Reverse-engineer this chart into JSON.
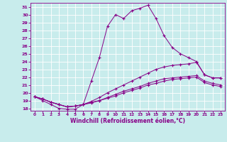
{
  "xlabel": "Windchill (Refroidissement éolien,°C)",
  "xlim": [
    -0.5,
    23.5
  ],
  "ylim": [
    17.7,
    31.5
  ],
  "xticks": [
    0,
    1,
    2,
    3,
    4,
    5,
    6,
    7,
    8,
    9,
    10,
    11,
    12,
    13,
    14,
    15,
    16,
    17,
    18,
    19,
    20,
    21,
    22,
    23
  ],
  "yticks": [
    18,
    19,
    20,
    21,
    22,
    23,
    24,
    25,
    26,
    27,
    28,
    29,
    30,
    31
  ],
  "background_color": "#c8ecec",
  "grid_color": "#ffffff",
  "line_color": "#880088",
  "marker": "+",
  "curve1_x": [
    0,
    1,
    2,
    3,
    4,
    5,
    6,
    7,
    8,
    9,
    10,
    11,
    12,
    13,
    14,
    15,
    16,
    17,
    18,
    19,
    20,
    21,
    22,
    23
  ],
  "curve1_y": [
    19.5,
    19.0,
    18.5,
    18.0,
    17.9,
    17.9,
    18.5,
    21.5,
    24.5,
    28.5,
    30.0,
    29.5,
    30.5,
    30.8,
    31.2,
    29.5,
    27.3,
    25.8,
    25.0,
    24.5,
    24.0,
    22.3,
    21.9,
    21.9
  ],
  "curve2_x": [
    0,
    1,
    2,
    3,
    4,
    5,
    6,
    7,
    8,
    9,
    10,
    11,
    12,
    13,
    14,
    15,
    16,
    17,
    18,
    19,
    20,
    21,
    22,
    23
  ],
  "curve2_y": [
    19.5,
    19.2,
    18.8,
    18.5,
    18.2,
    18.3,
    18.5,
    18.9,
    19.4,
    20.0,
    20.5,
    21.0,
    21.5,
    22.0,
    22.5,
    23.0,
    23.3,
    23.5,
    23.6,
    23.7,
    23.9,
    22.3,
    21.9,
    21.9
  ],
  "curve3_x": [
    0,
    1,
    2,
    3,
    4,
    5,
    6,
    7,
    8,
    9,
    10,
    11,
    12,
    13,
    14,
    15,
    16,
    17,
    18,
    19,
    20,
    21,
    22,
    23
  ],
  "curve3_y": [
    19.5,
    19.2,
    18.8,
    18.5,
    18.2,
    18.3,
    18.5,
    18.8,
    19.0,
    19.4,
    19.8,
    20.2,
    20.5,
    20.8,
    21.2,
    21.5,
    21.8,
    21.9,
    22.0,
    22.1,
    22.2,
    21.5,
    21.2,
    21.0
  ],
  "curve4_x": [
    0,
    1,
    2,
    3,
    4,
    5,
    6,
    7,
    8,
    9,
    10,
    11,
    12,
    13,
    14,
    15,
    16,
    17,
    18,
    19,
    20,
    21,
    22,
    23
  ],
  "curve4_y": [
    19.5,
    19.2,
    18.8,
    18.5,
    18.2,
    18.3,
    18.5,
    18.7,
    19.0,
    19.3,
    19.6,
    20.0,
    20.3,
    20.6,
    21.0,
    21.2,
    21.5,
    21.7,
    21.8,
    21.9,
    22.0,
    21.3,
    21.0,
    20.8
  ]
}
